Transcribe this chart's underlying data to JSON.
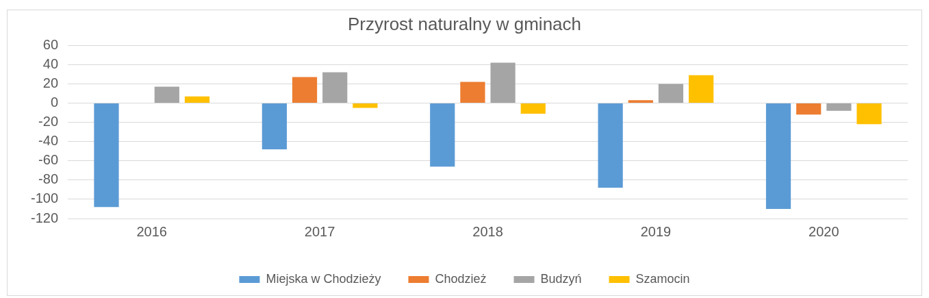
{
  "chart_data": {
    "type": "bar",
    "title": "Przyrost naturalny w gminach",
    "categories": [
      "2016",
      "2017",
      "2018",
      "2019",
      "2020"
    ],
    "series": [
      {
        "name": "Miejska w Chodzieży",
        "color": "#5b9bd5",
        "values": [
          -108,
          -48,
          -66,
          -88,
          -110
        ]
      },
      {
        "name": "Chodzież",
        "color": "#ed7d31",
        "values": [
          0,
          27,
          22,
          3,
          -12
        ]
      },
      {
        "name": "Budzyń",
        "color": "#a5a5a5",
        "values": [
          17,
          32,
          42,
          20,
          -8
        ]
      },
      {
        "name": "Szamocin",
        "color": "#ffc000",
        "values": [
          7,
          -5,
          -11,
          29,
          -22
        ]
      }
    ],
    "ylim": [
      -120,
      60
    ],
    "yticks": [
      -120,
      -100,
      -80,
      -60,
      -40,
      -20,
      0,
      20,
      40,
      60
    ],
    "grid": "y",
    "legend": "bottom"
  }
}
